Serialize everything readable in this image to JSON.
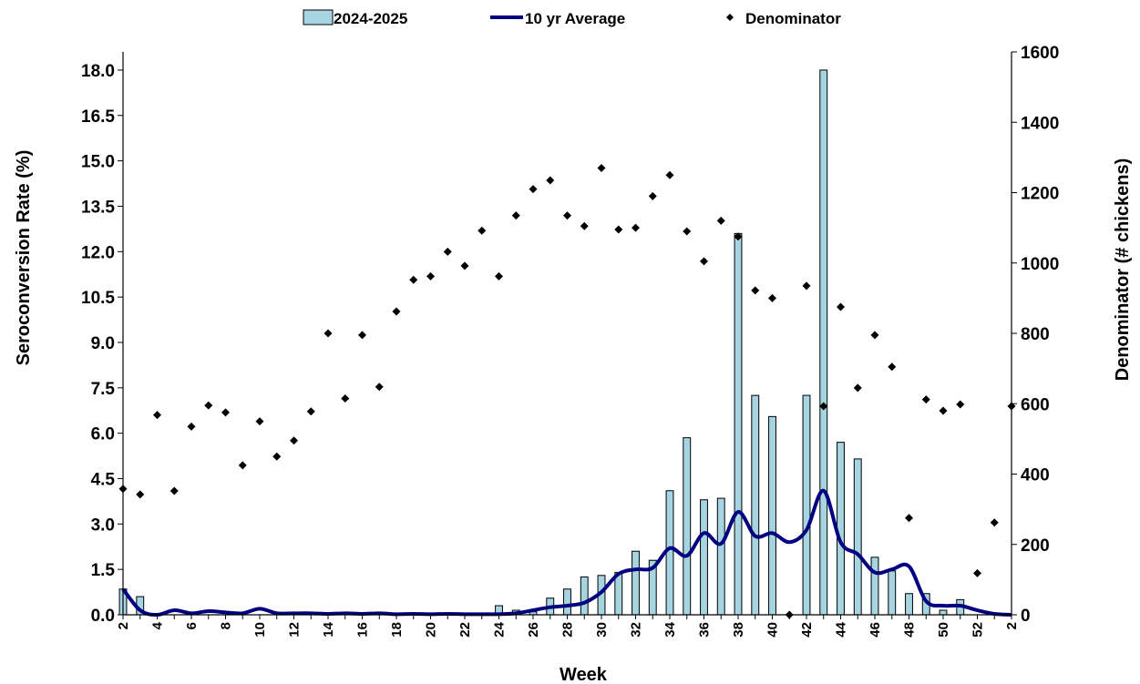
{
  "chart_data": {
    "type": "bar",
    "xlabel": "Week",
    "ylabel": "Seroconversion Rate (%)",
    "y2label": "Denominator  (# chickens)",
    "ylim": [
      0,
      18.6
    ],
    "y2lim": [
      0,
      1600
    ],
    "y_ticks": [
      "0.0",
      "1.5",
      "3.0",
      "4.5",
      "6.0",
      "7.5",
      "9.0",
      "10.5",
      "12.0",
      "13.5",
      "15.0",
      "16.5",
      "18.0"
    ],
    "y2_ticks": [
      "0",
      "200",
      "400",
      "600",
      "800",
      "1000",
      "1200",
      "1400",
      "1600"
    ],
    "x_tick_labels": [
      "2",
      "4",
      "6",
      "8",
      "10",
      "12",
      "14",
      "16",
      "18",
      "20",
      "22",
      "24",
      "26",
      "28",
      "30",
      "32",
      "34",
      "36",
      "38",
      "40",
      "42",
      "44",
      "46",
      "48",
      "50",
      "52",
      "2"
    ],
    "x": [
      "2",
      "3",
      "4",
      "5",
      "6",
      "7",
      "8",
      "9",
      "10",
      "11",
      "12",
      "13",
      "14",
      "15",
      "16",
      "17",
      "18",
      "19",
      "20",
      "21",
      "22",
      "23",
      "24",
      "25",
      "26",
      "27",
      "28",
      "29",
      "30",
      "31",
      "32",
      "33",
      "34",
      "35",
      "36",
      "37",
      "38",
      "39",
      "40",
      "41",
      "42",
      "43",
      "44",
      "45",
      "46",
      "47",
      "48",
      "49",
      "50",
      "51",
      "52",
      "53",
      "2"
    ],
    "legend": {
      "position": "top",
      "entries": [
        "2024-2025",
        "10 yr Average",
        "Denominator"
      ]
    },
    "colors": {
      "bar_fill": "#a6d4e0",
      "bar_stroke": "#000000",
      "line": "#000080",
      "marker": "#000000"
    },
    "series": [
      {
        "name": "2024-2025",
        "type": "bar",
        "axis": "left",
        "values": [
          0.85,
          0.6,
          0,
          0,
          0,
          0,
          0,
          0,
          0,
          0,
          0,
          0,
          0,
          0,
          0,
          0,
          0,
          0,
          0,
          0,
          0,
          0,
          0.3,
          0.15,
          0.1,
          0.55,
          0.85,
          1.25,
          1.3,
          1.4,
          2.1,
          1.8,
          4.1,
          5.85,
          3.8,
          3.85,
          12.6,
          7.25,
          6.55,
          0,
          7.25,
          18.0,
          5.7,
          5.15,
          1.9,
          1.45,
          0.7,
          0.7,
          0.15,
          0.5,
          0,
          0,
          0
        ]
      },
      {
        "name": "10 yr Average",
        "type": "line",
        "axis": "left",
        "values": [
          0.85,
          0.15,
          0,
          0.15,
          0.05,
          0.12,
          0.08,
          0.05,
          0.2,
          0.05,
          0.05,
          0.05,
          0.03,
          0.05,
          0.03,
          0.05,
          0.02,
          0.03,
          0.02,
          0.03,
          0.02,
          0.02,
          0.02,
          0.05,
          0.15,
          0.25,
          0.3,
          0.4,
          0.75,
          1.35,
          1.5,
          1.55,
          2.2,
          1.95,
          2.7,
          2.35,
          3.4,
          2.6,
          2.7,
          2.4,
          2.8,
          4.1,
          2.4,
          2.0,
          1.4,
          1.5,
          1.6,
          0.45,
          0.3,
          0.3,
          0.15,
          0.03,
          0
        ]
      },
      {
        "name": "Denominator",
        "type": "scatter",
        "axis": "right",
        "values": [
          358,
          342,
          568,
          352,
          535,
          595,
          575,
          425,
          550,
          450,
          495,
          578,
          800,
          615,
          795,
          648,
          862,
          952,
          962,
          1032,
          992,
          1092,
          962,
          1135,
          1210,
          1235,
          1135,
          1105,
          1270,
          1095,
          1100,
          1190,
          1250,
          1090,
          1005,
          1120,
          1075,
          922,
          900,
          0,
          935,
          593,
          875,
          645,
          795,
          705,
          275,
          612,
          580,
          598,
          118,
          262,
          593
        ]
      }
    ]
  }
}
